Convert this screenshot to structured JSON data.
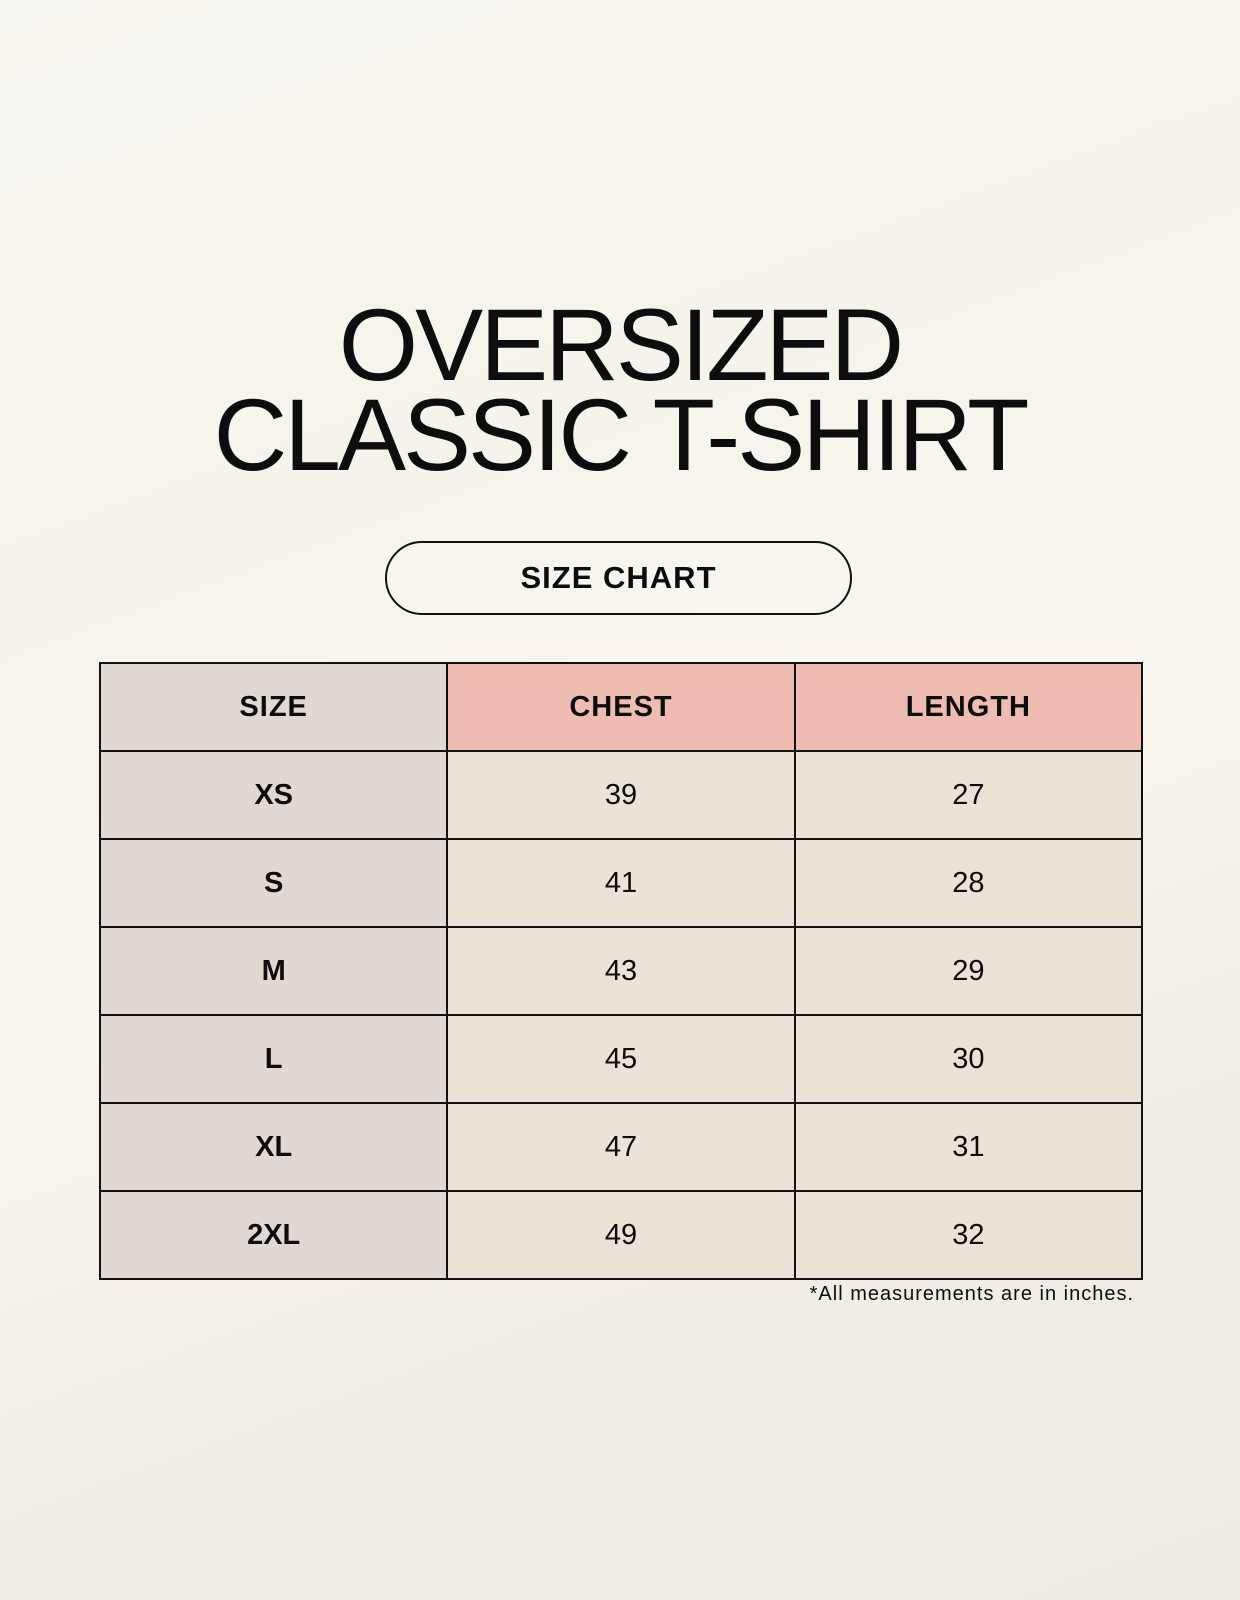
{
  "title": {
    "line1": "OVERSIZED",
    "line2": "CLASSIC T-SHIRT"
  },
  "badge": "SIZE CHART",
  "table": {
    "headers": [
      "SIZE",
      "CHEST",
      "LENGTH"
    ],
    "rows": [
      [
        "XS",
        "39",
        "27"
      ],
      [
        "S",
        "41",
        "28"
      ],
      [
        "M",
        "43",
        "29"
      ],
      [
        "L",
        "45",
        "30"
      ],
      [
        "XL",
        "47",
        "31"
      ],
      [
        "2XL",
        "49",
        "32"
      ]
    ]
  },
  "footnote": "*All measurements are in inches.",
  "colors": {
    "size_column": "#e0d8d3",
    "header_accent": "#eebcb0",
    "cell": "#ebe3d8",
    "background": "#f8f6f0"
  }
}
